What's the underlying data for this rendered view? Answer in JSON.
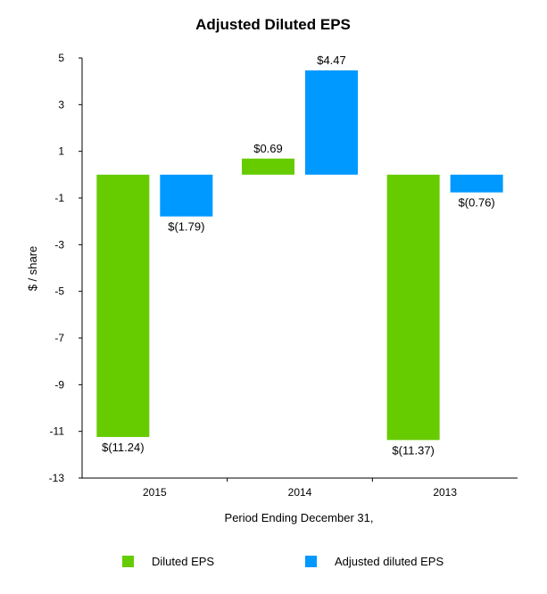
{
  "chart_data": {
    "type": "bar",
    "title": "Adjusted Diluted EPS",
    "xlabel": "Period Ending December 31,",
    "ylabel": "$ / share",
    "categories": [
      "2015",
      "2014",
      "2013"
    ],
    "ylim": [
      -13,
      5
    ],
    "yticks": [
      5,
      3,
      1,
      -1,
      -3,
      -5,
      -7,
      -9,
      -11,
      -13
    ],
    "ytick_labels": [
      "5",
      "3",
      "1",
      "-1",
      "-3",
      "-5",
      "-7",
      "-9",
      "-11",
      "-13"
    ],
    "grid": false,
    "legend_position": "bottom",
    "series": [
      {
        "name": "Diluted EPS",
        "color": "#66cc00",
        "values": [
          -11.24,
          0.69,
          -11.37
        ],
        "labels": [
          "$(11.24)",
          "$0.69",
          "$(11.37)"
        ]
      },
      {
        "name": "Adjusted diluted EPS",
        "color": "#0099ff",
        "values": [
          -1.79,
          4.47,
          -0.76
        ],
        "labels": [
          "$(1.79)",
          "$4.47",
          "$(0.76)"
        ]
      }
    ]
  }
}
